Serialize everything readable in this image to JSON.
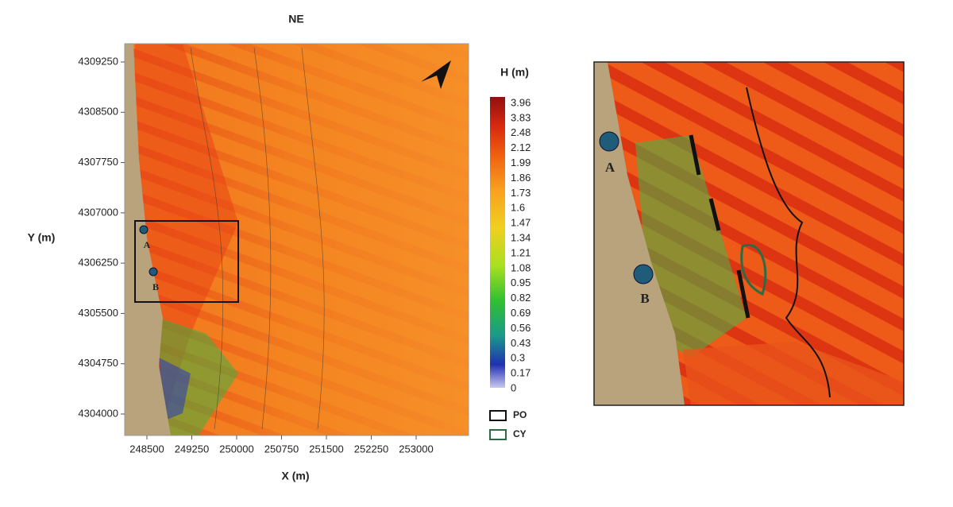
{
  "title": "NE",
  "y_axis": {
    "label": "Y (m)",
    "ticks": [
      "4309250",
      "4308500",
      "4307750",
      "4307000",
      "4306250",
      "4305500",
      "4304750",
      "4304000"
    ]
  },
  "x_axis": {
    "label": "X (m)",
    "ticks": [
      "248500",
      "249250",
      "250000",
      "250750",
      "251500",
      "252250",
      "253000"
    ]
  },
  "colorbar": {
    "title": "H (m)",
    "labels": [
      "3.96",
      "3.83",
      "2.48",
      "2.12",
      "1.99",
      "1.86",
      "1.73",
      "1.6",
      "1.47",
      "1.34",
      "1.21",
      "1.08",
      "0.95",
      "0.82",
      "0.69",
      "0.56",
      "0.43",
      "0.3",
      "0.17",
      "0"
    ]
  },
  "legend": [
    "PO",
    "CY"
  ],
  "points": [
    "A",
    "B"
  ],
  "inset": {
    "points": [
      "A",
      "B"
    ]
  }
}
